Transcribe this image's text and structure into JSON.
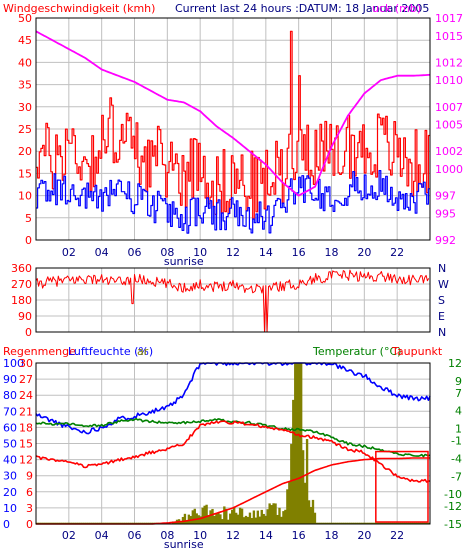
{
  "colors": {
    "frame": "#000000",
    "grid": "#c0c0c0",
    "wind_max": "#ff0000",
    "wind_avg": "#0000ff",
    "pressure": "#ff00ff",
    "direction": "#ff0000",
    "humidity": "#0000ff",
    "temperature": "#008000",
    "dewpoint": "#ff0000",
    "radiation": "#808000",
    "rain": "#ff0000",
    "axis_right_green": "#008000",
    "axis_right_magenta": "#ff00ff",
    "axis_left_red": "#ff0000",
    "axis_left_blue": "#0000ff",
    "axis_dark": "#000080"
  },
  "header": {
    "wind_title": "Windgeschwindigkeit (kmh)",
    "current_text": "Current last 24 hours :DATUM: 18 Januar 2005",
    "pressure_label": "uck (mb)"
  },
  "bottom_header": {
    "rain_label": "Regenmenge",
    "humidity_label": "Luftfeuchte (%)",
    "solar_label": "ar",
    "temperature_label": "Temperatur (°C)",
    "dewpoint_label": "Taupunkt"
  },
  "sunrise_label": "sunrise",
  "x_axis": {
    "range": [
      0,
      24
    ],
    "ticks": [
      "02",
      "04",
      "06",
      "08",
      "10",
      "12",
      "14",
      "16",
      "18",
      "20",
      "22"
    ]
  },
  "chart_data": [
    {
      "type": "line",
      "title": "Windgeschwindigkeit (kmh)",
      "subtitle": "Current last 24 hours :DATUM: 18 Januar 2005",
      "ylabel": "Windgeschwindigkeit (kmh)",
      "ylim": [
        0,
        50
      ],
      "y_ticks": [
        0,
        5,
        10,
        15,
        20,
        25,
        30,
        35,
        40,
        45,
        50
      ],
      "y2_label": "uck (mb)",
      "y2lim": [
        992,
        1017
      ],
      "y2_ticks": [
        992,
        995,
        997,
        1000,
        1002,
        1005,
        1007,
        1010,
        1012,
        1015,
        1017
      ],
      "x": [
        0,
        1,
        2,
        3,
        4,
        5,
        6,
        7,
        8,
        9,
        10,
        11,
        12,
        13,
        14,
        15,
        16,
        17,
        18,
        19,
        20,
        21,
        22,
        23,
        24
      ],
      "series": [
        {
          "name": "Windgeschwindigkeit (kmh)",
          "values": [
            20,
            18,
            22,
            17,
            21,
            25,
            20,
            18,
            17,
            15,
            18,
            12,
            14,
            12,
            13,
            16,
            24,
            20,
            18,
            22,
            20,
            22,
            19,
            17,
            18
          ]
        },
        {
          "name": "wind average",
          "values": [
            10,
            12,
            11,
            9,
            10,
            12,
            9,
            8,
            6,
            5,
            7,
            5,
            6,
            4,
            5,
            8,
            13,
            11,
            10,
            12,
            11,
            12,
            10,
            9,
            10
          ]
        },
        {
          "name": "uck (mb)",
          "values": [
            1015.5,
            1014.5,
            1013.5,
            1012.5,
            1011.2,
            1010.5,
            1009.8,
            1008.8,
            1007.8,
            1007.5,
            1006.5,
            1004.8,
            1003.5,
            1002.0,
            1000.5,
            998.5,
            997.0,
            998.0,
            1002.5,
            1006.0,
            1008.5,
            1010.0,
            1010.5,
            1010.5,
            1010.6
          ]
        }
      ],
      "peaks": [
        {
          "x": 15.5,
          "value": 47
        },
        {
          "x": 16.0,
          "value": 37
        },
        {
          "x": 4.5,
          "value": 32
        }
      ]
    },
    {
      "type": "line",
      "title": "Windrichtung",
      "ylim": [
        0,
        360
      ],
      "y_ticks": [
        0,
        90,
        180,
        270,
        360
      ],
      "y2_ticks": [
        "N",
        "W",
        "S",
        "E",
        "N"
      ],
      "x": [
        0,
        1,
        2,
        3,
        4,
        5,
        6,
        7,
        8,
        9,
        10,
        11,
        12,
        13,
        14,
        15,
        16,
        17,
        18,
        19,
        20,
        21,
        22,
        23,
        24
      ],
      "series": [
        {
          "name": "Windrichtung",
          "values": [
            270,
            285,
            290,
            300,
            295,
            280,
            300,
            285,
            270,
            250,
            265,
            255,
            270,
            245,
            250,
            260,
            270,
            300,
            315,
            320,
            310,
            315,
            300,
            290,
            305
          ]
        }
      ]
    },
    {
      "type": "line",
      "title": "Luftfeuchte / Temperatur",
      "ylabel": "Luftfeuchte (%)",
      "ylim": [
        0,
        100
      ],
      "y_ticks": [
        0,
        10,
        20,
        30,
        40,
        50,
        60,
        70,
        80,
        90,
        100
      ],
      "y_left_red_ticks": [
        0,
        3,
        6,
        9,
        12,
        15,
        18,
        21,
        24,
        27,
        30
      ],
      "y2_label": "Temperatur (°C)",
      "y2lim": [
        -15,
        12
      ],
      "y2_ticks": [
        -15,
        -12,
        -10,
        -7,
        -4,
        -1,
        1,
        4,
        7,
        9,
        12
      ],
      "x": [
        0,
        1,
        2,
        3,
        4,
        5,
        6,
        7,
        8,
        9,
        10,
        11,
        12,
        13,
        14,
        15,
        16,
        17,
        18,
        19,
        20,
        21,
        22,
        23,
        24
      ],
      "series": [
        {
          "name": "Luftfeuchte (%)",
          "values": [
            68,
            64,
            60,
            57,
            60,
            65,
            67,
            70,
            72,
            80,
            100,
            100,
            100,
            100,
            100,
            100,
            100,
            100,
            100,
            95,
            92,
            85,
            80,
            78,
            78
          ]
        },
        {
          "name": "Temperatur (°C)",
          "values": [
            2.0,
            1.8,
            1.8,
            1.5,
            1.5,
            2.2,
            2.5,
            2.2,
            2.0,
            2.0,
            2.2,
            2.5,
            2.2,
            2.0,
            1.5,
            1.0,
            0.8,
            0.5,
            -0.5,
            -1.5,
            -2.0,
            -2.5,
            -3.2,
            -3.5,
            -3.5
          ]
        },
        {
          "name": "Taupunkt",
          "values": [
            -3.8,
            -4.3,
            -4.5,
            -5.3,
            -5.0,
            -4.3,
            -3.8,
            -3.0,
            -2.5,
            -1.5,
            1.5,
            2.2,
            2.0,
            1.8,
            1.2,
            0.8,
            -0.2,
            -0.5,
            -1.2,
            -2.5,
            -3.0,
            -5.0,
            -7.0,
            -7.8,
            -7.8
          ]
        },
        {
          "name": "ar",
          "values": [
            0,
            0,
            0,
            0,
            0,
            0,
            0,
            0,
            0,
            5,
            10,
            8,
            9,
            6,
            10,
            10,
            100,
            0,
            0,
            0,
            0,
            0,
            0,
            0,
            0
          ]
        },
        {
          "name": "Regenmenge",
          "values": [
            0,
            0,
            0,
            0,
            0,
            0,
            0,
            0,
            0.2,
            0.5,
            1.0,
            2.0,
            3.0,
            4.5,
            6.0,
            7.5,
            8.5,
            10.0,
            11.0,
            11.6,
            12.0,
            12.2,
            12.2,
            12.3,
            12.3
          ]
        }
      ]
    }
  ]
}
